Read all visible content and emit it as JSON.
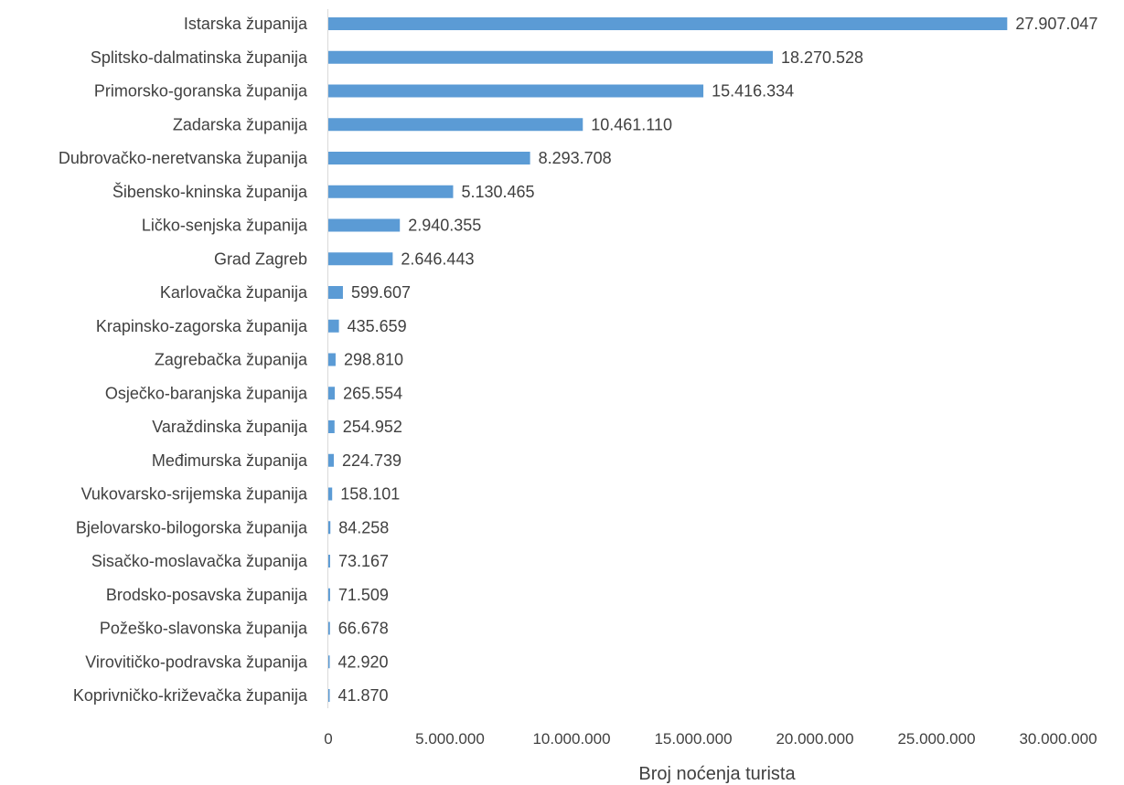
{
  "chart_data": {
    "type": "bar",
    "orientation": "horizontal",
    "title": "",
    "xlabel": "Broj noćenja turista",
    "ylabel": "",
    "xlim": [
      0,
      30000000
    ],
    "x_ticks": [
      0,
      5000000,
      10000000,
      15000000,
      20000000,
      25000000,
      30000000
    ],
    "x_tick_labels": [
      "0",
      "5.000.000",
      "10.000.000",
      "15.000.000",
      "20.000.000",
      "25.000.000",
      "30.000.000"
    ],
    "grid": false,
    "bar_color": "#5B9BD5",
    "categories": [
      "Istarska županija",
      "Splitsko-dalmatinska županija",
      "Primorsko-goranska županija",
      "Zadarska županija",
      "Dubrovačko-neretvanska županija",
      "Šibensko-kninska županija",
      "Ličko-senjska županija",
      "Grad Zagreb",
      "Karlovačka županija",
      "Krapinsko-zagorska županija",
      "Zagrebačka županija",
      "Osječko-baranjska županija",
      "Varaždinska županija",
      "Međimurska županija",
      "Vukovarsko-srijemska županija",
      "Bjelovarsko-bilogorska županija",
      "Sisačko-moslavačka županija",
      "Brodsko-posavska županija",
      "Požeško-slavonska županija",
      "Virovitičko-podravska županija",
      "Koprivničko-križevačka županija"
    ],
    "values": [
      27907047,
      18270528,
      15416334,
      10461110,
      8293708,
      5130465,
      2940355,
      2646443,
      599607,
      435659,
      298810,
      265554,
      254952,
      224739,
      158101,
      84258,
      73167,
      71509,
      66678,
      42920,
      41870
    ],
    "value_labels": [
      "27.907.047",
      "18.270.528",
      "15.416.334",
      "10.461.110",
      "8.293.708",
      "5.130.465",
      "2.940.355",
      "2.646.443",
      "599.607",
      "435.659",
      "298.810",
      "265.554",
      "254.952",
      "224.739",
      "158.101",
      "84.258",
      "73.167",
      "71.509",
      "66.678",
      "42.920",
      "41.870"
    ]
  }
}
